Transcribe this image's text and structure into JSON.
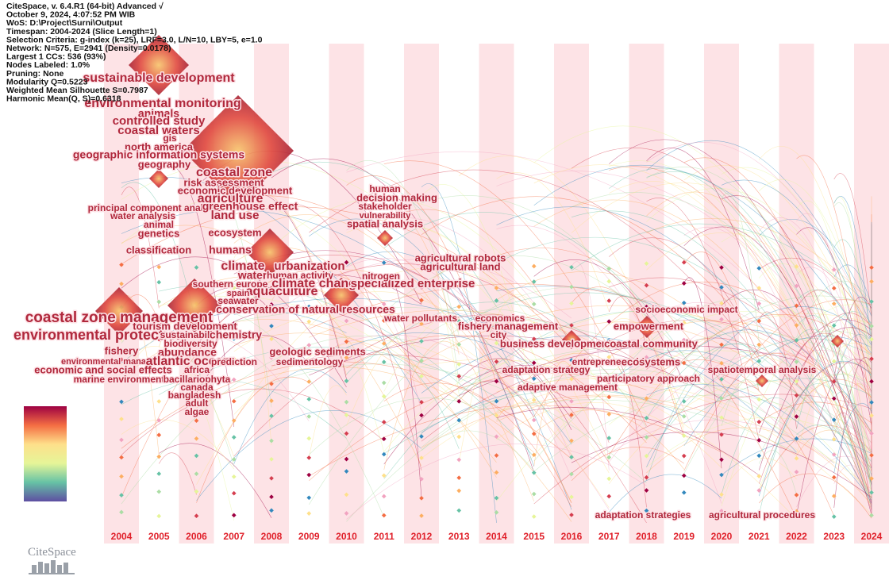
{
  "info": [
    "CiteSpace, v. 6.4.R1 (64-bit) Advanced √",
    "October 9, 2024, 4:07:52 PM WIB",
    "WoS: D:\\Project\\Surni\\Output",
    "Timespan: 2004-2024 (Slice Length=1)",
    "Selection Criteria: g-index (k=25), LRF=3.0, L/N=10, LBY=5, e=1.0",
    "Network: N=575, E=2941 (Density=0.0178)",
    "Largest 1 CCs: 536 (93%)",
    "Nodes Labeled: 1.0%",
    "Pruning: None",
    "Modularity Q=0.5223",
    "Weighted Mean Silhouette S=0.7987",
    "Harmonic Mean(Q, S)=0.6318"
  ],
  "years": [
    "2004",
    "2005",
    "2006",
    "2007",
    "2008",
    "2009",
    "2010",
    "2011",
    "2012",
    "2013",
    "2014",
    "2015",
    "2016",
    "2017",
    "2018",
    "2019",
    "2020",
    "2021",
    "2022",
    "2023",
    "2024"
  ],
  "keywords": [
    "coastal zone management",
    "environmental protection",
    "fishery",
    "environmental management",
    "economic and social effects",
    "marine environment",
    "sustainable development",
    "environmental monitoring",
    "animals",
    "controlled study",
    "coastal waters",
    "gis",
    "north america",
    "geographic information systems",
    "geography",
    "principal component analysis",
    "water analysis",
    "animal",
    "genetics",
    "classification",
    "coastal zone",
    "risk assessment",
    "economic development",
    "agriculture",
    "greenhouse effect",
    "land use",
    "ecosystem",
    "tourism development",
    "sustainability",
    "chemistry",
    "biodiversity",
    "abundance",
    "atlantic ocean",
    "africa",
    "bacillariophyta",
    "canada",
    "bangladesh",
    "adult",
    "algae",
    "humans",
    "climate",
    "urbanization",
    "water",
    "human activity",
    "southern europe",
    "aquaculture",
    "spain",
    "seawater",
    "conservation of natural resources",
    "geologic sediments",
    "sedimentology",
    "prediction",
    "climate change",
    "specialized enterprise",
    "nitrogen",
    "water pollutants",
    "human",
    "decision making",
    "stakeholder",
    "vulnerability",
    "spatial analysis",
    "agricultural robots",
    "agricultural land",
    "economics",
    "fishery management",
    "city",
    "business development",
    "coastal community",
    "socioeconomic impact",
    "empowerment",
    "entrepreneurship",
    "ecosystems",
    "adaptation strategy",
    "participatory approach",
    "adaptive management",
    "spatiotemporal analysis",
    "adaptation strategies",
    "agricultural procedures"
  ],
  "logo": "CiteSpace"
}
